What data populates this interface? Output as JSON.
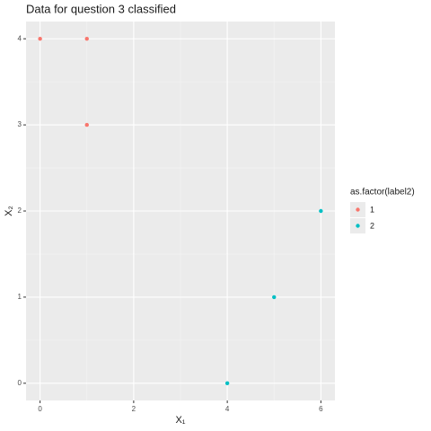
{
  "chart_data": {
    "type": "scatter",
    "title": "Data for question 3 classified",
    "x_label": "X₁",
    "y_label": "X₂",
    "legend_title": "as.factor(label2)",
    "series": [
      {
        "name": "1",
        "color": "#F8766D",
        "x": [
          0,
          1,
          1
        ],
        "values": [
          4,
          4,
          3
        ]
      },
      {
        "name": "2",
        "color": "#00BFC4",
        "x": [
          4,
          5,
          6
        ],
        "values": [
          0,
          1,
          2
        ]
      }
    ],
    "xlim": [
      -0.3,
      6.3
    ],
    "ylim": [
      -0.2,
      4.2
    ],
    "xticks": [
      0,
      2,
      4,
      6
    ],
    "yticks": [
      0,
      1,
      2,
      3,
      4
    ],
    "x_minor_ticks": [
      1,
      3,
      5
    ],
    "y_minor_ticks": [
      0.5,
      1.5,
      2.5,
      3.5
    ],
    "grid": true,
    "legend": "right"
  }
}
